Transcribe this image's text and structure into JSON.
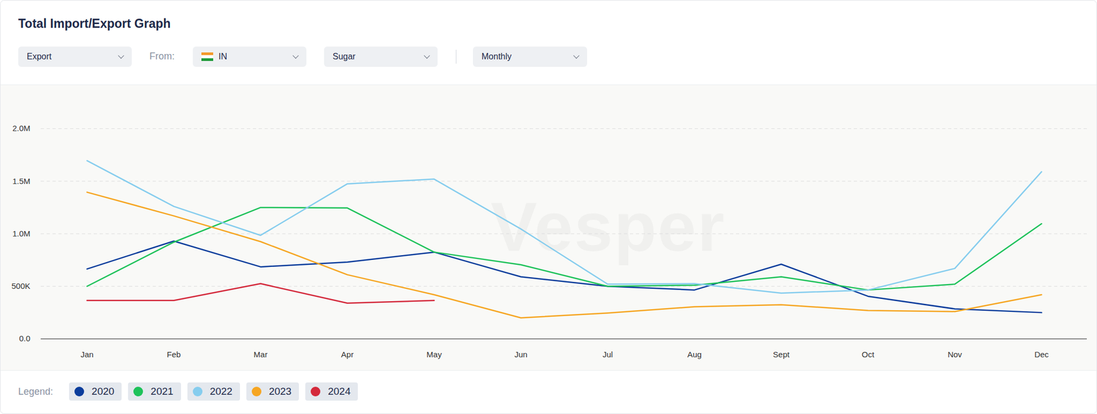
{
  "chart_data": {
    "type": "line",
    "title": "Total Import/Export Graph",
    "categories": [
      "Jan",
      "Feb",
      "Mar",
      "Apr",
      "May",
      "Jun",
      "Jul",
      "Aug",
      "Sept",
      "Oct",
      "Nov",
      "Dec"
    ],
    "series": [
      {
        "name": "2020",
        "color": "#0b3d9c",
        "values": [
          665000,
          930000,
          685000,
          730000,
          825000,
          590000,
          500000,
          465000,
          710000,
          405000,
          285000,
          250000
        ]
      },
      {
        "name": "2021",
        "color": "#1ec25a",
        "values": [
          500000,
          920000,
          1250000,
          1245000,
          825000,
          705000,
          500000,
          510000,
          590000,
          465000,
          520000,
          1095000
        ]
      },
      {
        "name": "2022",
        "color": "#86cdee",
        "values": [
          1695000,
          1260000,
          985000,
          1475000,
          1520000,
          1045000,
          520000,
          525000,
          435000,
          465000,
          670000,
          1590000
        ]
      },
      {
        "name": "2023",
        "color": "#f6a623",
        "values": [
          1395000,
          1170000,
          925000,
          610000,
          420000,
          200000,
          245000,
          305000,
          325000,
          270000,
          260000,
          420000
        ]
      },
      {
        "name": "2024",
        "color": "#d42a3c",
        "values": [
          365000,
          365000,
          525000,
          340000,
          365000,
          null,
          null,
          null,
          null,
          null,
          null,
          null
        ]
      }
    ],
    "ylim": [
      0,
      2000000
    ],
    "yticks": [
      {
        "value": 0,
        "label": "0.0"
      },
      {
        "value": 500000,
        "label": "500K"
      },
      {
        "value": 1000000,
        "label": "1.0M"
      },
      {
        "value": 1500000,
        "label": "1.5M"
      },
      {
        "value": 2000000,
        "label": "2.0M"
      }
    ],
    "grid": true,
    "legend": "bottom"
  },
  "controls": {
    "flow": "Export",
    "from_label": "From:",
    "country": "IN",
    "product": "Sugar",
    "period": "Monthly",
    "legend_label": "Legend:",
    "watermark": "Vesper"
  }
}
